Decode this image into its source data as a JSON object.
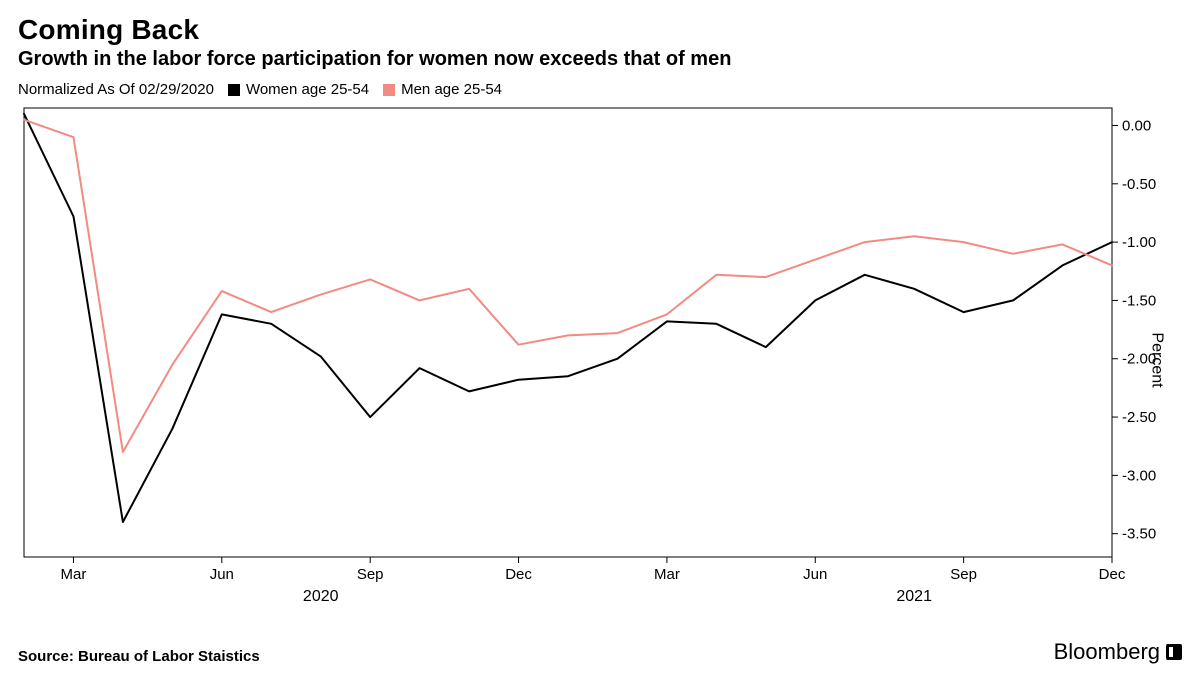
{
  "title": "Coming Back",
  "subtitle": "Growth in the labor force participation for women now exceeds that of men",
  "legend_note": "Normalized As Of 02/29/2020",
  "source": "Source: Bureau of Labor Staistics",
  "brand": "Bloomberg",
  "y_axis_label": "Percent",
  "chart": {
    "type": "line",
    "background_color": "#ffffff",
    "grid_color": "#000000",
    "grid_alpha": 0.0,
    "line_width": 2,
    "ylim": [
      -3.7,
      0.15
    ],
    "ytick_step": 0.5,
    "yticks": [
      0.0,
      -0.5,
      -1.0,
      -1.5,
      -2.0,
      -2.5,
      -3.0,
      -3.5
    ],
    "ytick_labels": [
      "0.00",
      "-0.50",
      "-1.00",
      "-1.50",
      "-2.00",
      "-2.50",
      "-3.00",
      "-3.50"
    ],
    "x_index": [
      0,
      1,
      2,
      3,
      4,
      5,
      6,
      7,
      8,
      9,
      10,
      11,
      12,
      13,
      14,
      15,
      16,
      17,
      18,
      19,
      20,
      21,
      22
    ],
    "x_month_ticks": [
      1,
      4,
      7,
      10,
      13,
      16,
      19,
      22
    ],
    "x_month_tick_labels": [
      "Mar",
      "Jun",
      "Sep",
      "Dec",
      "Mar",
      "Jun",
      "Sep",
      "Dec"
    ],
    "x_year_ticks": [
      6,
      18
    ],
    "x_year_labels": [
      "2020",
      "2021"
    ],
    "series": [
      {
        "name": "Women age 25-54",
        "color": "#000000",
        "swatch_color": "#000000",
        "values": [
          0.1,
          -0.78,
          -3.4,
          -2.6,
          -1.62,
          -1.7,
          -1.98,
          -2.5,
          -2.08,
          -2.28,
          -2.18,
          -2.15,
          -2.0,
          -1.68,
          -1.7,
          -1.9,
          -1.5,
          -1.28,
          -1.4,
          -1.6,
          -1.5,
          -1.2,
          -1.0
        ]
      },
      {
        "name": "Men age 25-54",
        "color": "#f28b82",
        "swatch_color": "#f28b82",
        "values": [
          0.05,
          -0.1,
          -2.8,
          -2.05,
          -1.42,
          -1.6,
          -1.45,
          -1.32,
          -1.5,
          -1.4,
          -1.88,
          -1.8,
          -1.78,
          -1.62,
          -1.28,
          -1.3,
          -1.15,
          -1.0,
          -0.95,
          -1.0,
          -1.1,
          -1.02,
          -1.2
        ]
      }
    ]
  }
}
